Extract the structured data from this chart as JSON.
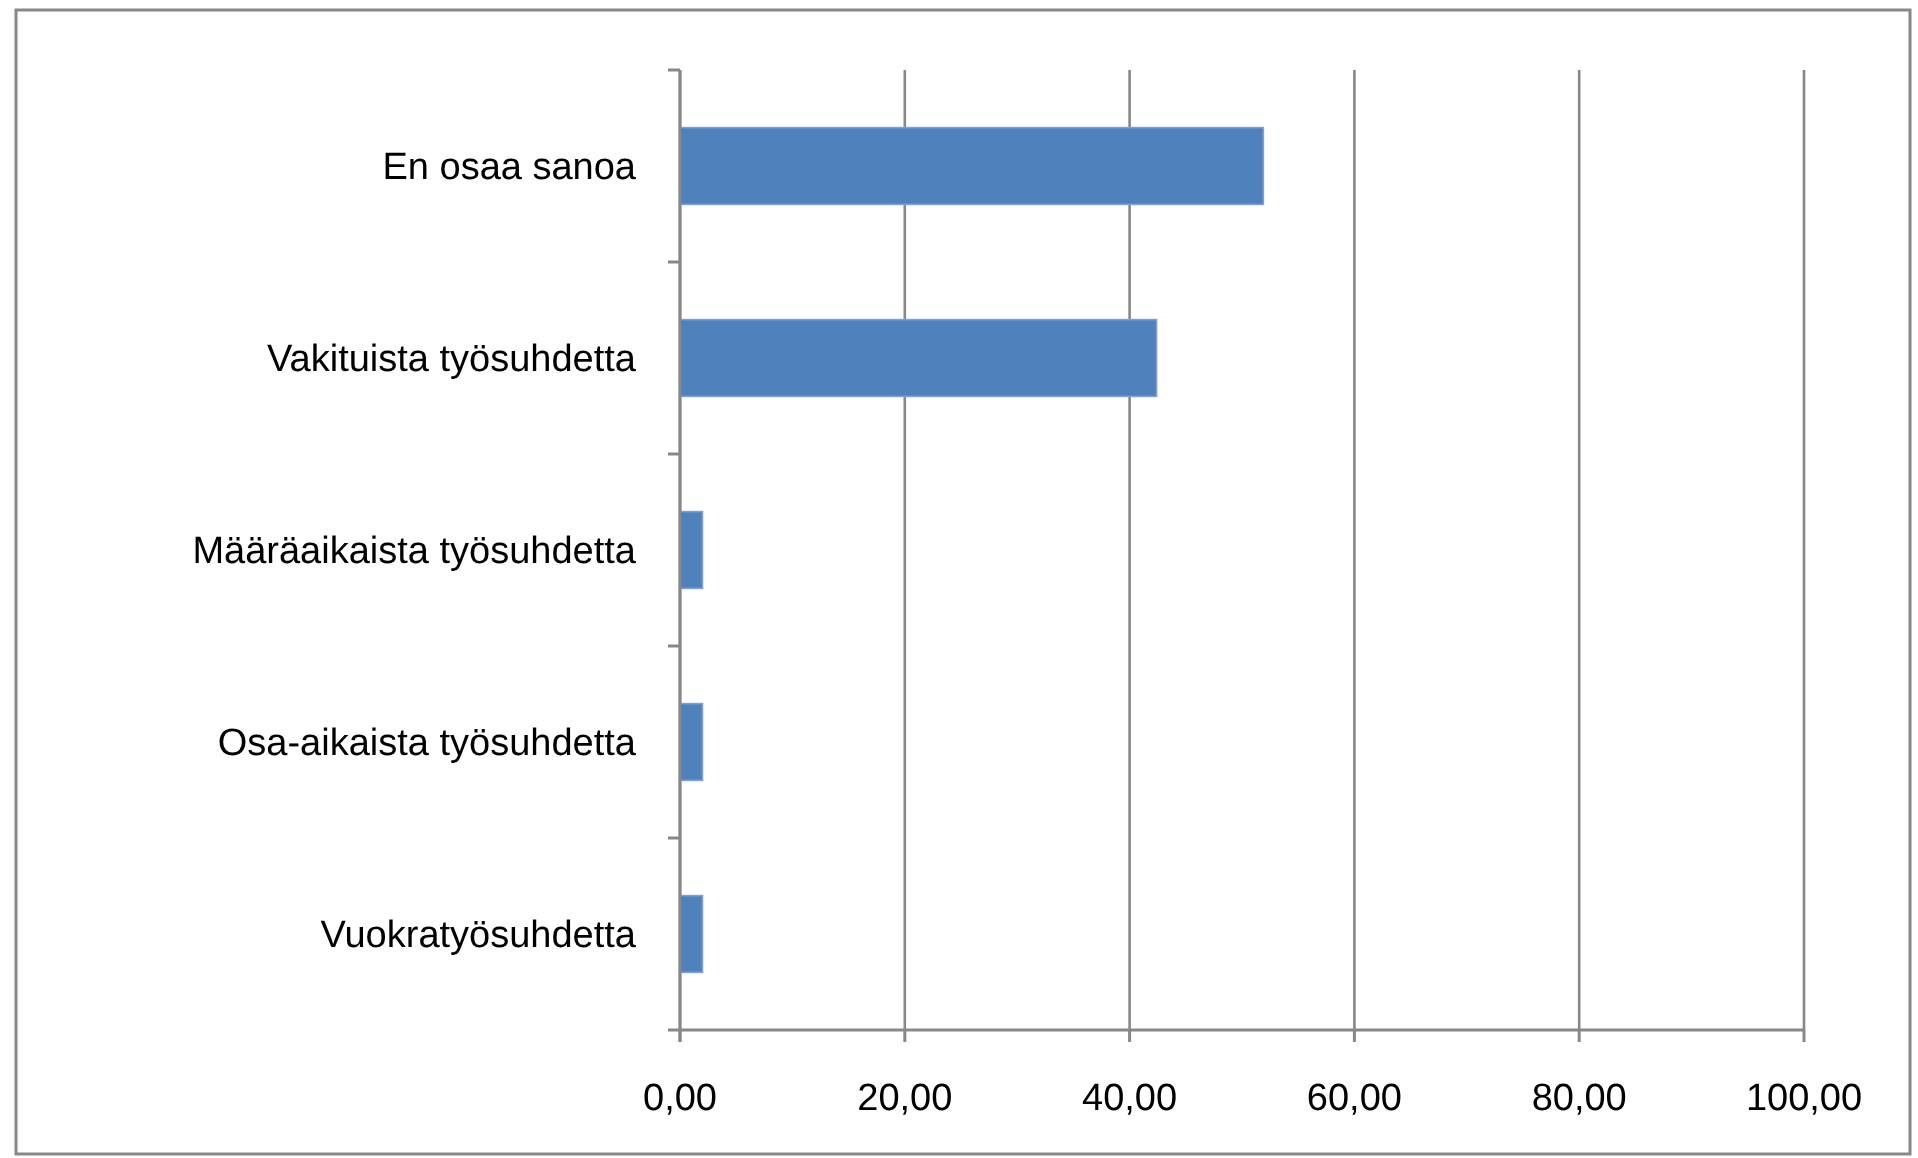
{
  "chart_data": {
    "type": "bar",
    "orientation": "horizontal",
    "categories": [
      "En osaa sanoa",
      "Vakituista työsuhdetta",
      "Määräaikaista työsuhdetta",
      "Osa-aikaista työsuhdetta",
      "Vuokratyösuhdetta"
    ],
    "values": [
      51.9,
      42.4,
      2.0,
      2.0,
      2.0
    ],
    "color": "#4f81bd",
    "xlim": [
      0,
      100
    ],
    "xticks": [
      {
        "value": 0,
        "label": "0,00"
      },
      {
        "value": 20,
        "label": "20,00"
      },
      {
        "value": 40,
        "label": "40,00"
      },
      {
        "value": 60,
        "label": "60,00"
      },
      {
        "value": 80,
        "label": "80,00"
      },
      {
        "value": 100,
        "label": "100,00"
      }
    ],
    "grid": "x"
  }
}
